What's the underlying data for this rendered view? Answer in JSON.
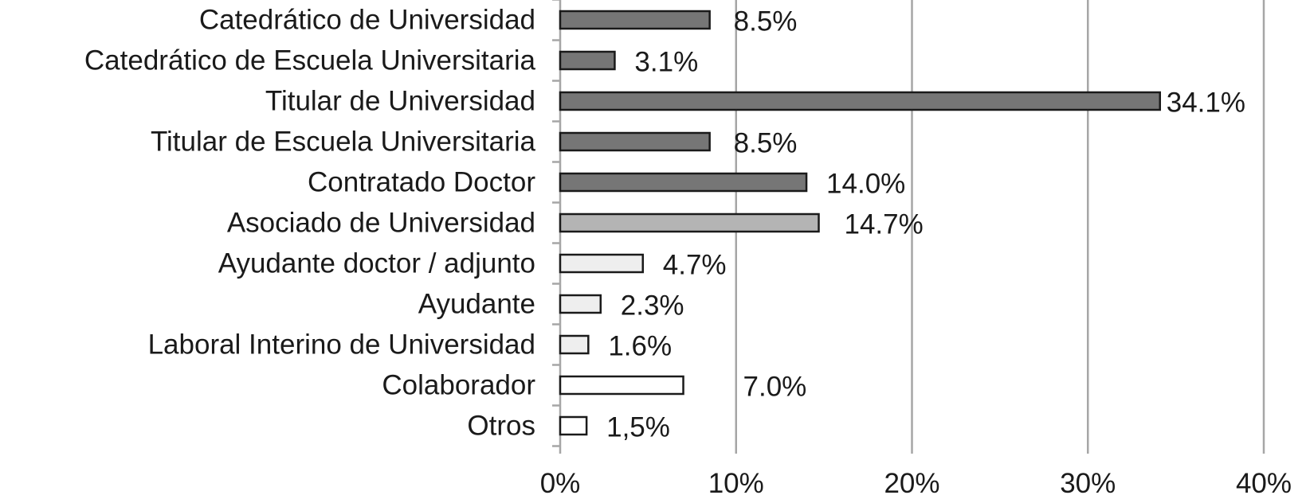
{
  "chart_data": {
    "type": "bar",
    "orientation": "horizontal",
    "categories": [
      "Catedrático de Universidad",
      "Catedrático de Escuela Universitaria",
      "Titular de Universidad",
      "Titular de Escuela Universitaria",
      "Contratado Doctor",
      "Asociado de Universidad",
      "Ayudante doctor / adjunto",
      "Ayudante",
      "Laboral Interino de Universidad",
      "Colaborador",
      "Otros"
    ],
    "values": [
      8.5,
      3.1,
      34.1,
      8.5,
      14.0,
      14.7,
      4.7,
      2.3,
      1.6,
      7.0,
      1.5
    ],
    "value_labels": [
      "8.5%",
      "3.1%",
      "34.1%",
      "8.5%",
      "14.0%",
      "14.7%",
      "4.7%",
      "2.3%",
      "1.6%",
      "7.0%",
      "1,5%"
    ],
    "bar_colors": [
      "#767676",
      "#767676",
      "#767676",
      "#767676",
      "#767676",
      "#b4b4b4",
      "#eeeeee",
      "#eeeeee",
      "#eeeeee",
      "#ffffff",
      "#ffffff"
    ],
    "xlim": [
      0,
      40
    ],
    "x_ticks": [
      0,
      10,
      20,
      30,
      40
    ],
    "x_tick_labels": [
      "0%",
      "10%",
      "20%",
      "30%",
      "40%"
    ],
    "grid": true,
    "legend": false,
    "title": "",
    "xlabel": "",
    "ylabel": ""
  }
}
